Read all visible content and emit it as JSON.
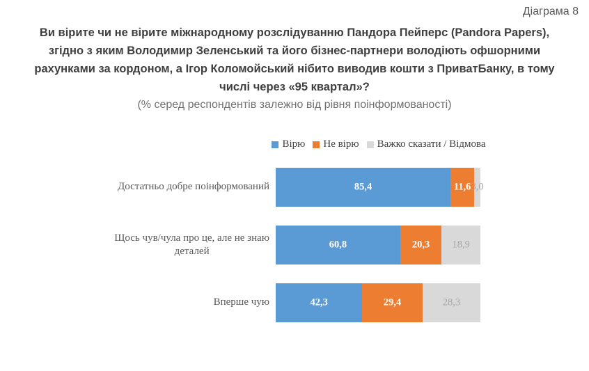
{
  "header": {
    "diagram_label": "Діаграма 8",
    "title": "Ви вірите чи не вірите міжнародному розслідуванню Пандора Пейперс (Pandora Papers),\nзгідно з яким Володимир Зеленський та його бізнес-партнери володіють офшорними\nрахунками за кордоном, а Ігор Коломойський нібито виводив кошти з ПриватБанку, в тому\nчислі через «95 квартал»?",
    "subtitle": "(% серед респондентів залежно від рівня поінформованості)"
  },
  "colors": {
    "believe": "#5B9BD5",
    "not_believe": "#ED7D31",
    "hard_to_say": "#D9D9D9",
    "muted_value_label": "#A6A6A6",
    "title_text": "#3F3F3F",
    "secondary_text": "#595959"
  },
  "chart_data": {
    "type": "bar",
    "orientation": "horizontal",
    "stacked": true,
    "title": "Ви вірите чи не вірите міжнародному розслідуванню Пандора Пейперс (Pandora Papers), згідно з яким Володимир Зеленський та його бізнес-партнери володіють офшорними рахунками за кордоном, а Ігор Коломойський нібито виводив кошти з ПриватБанку, в тому числі через «95 квартал»?",
    "subtitle": "(% серед респондентів залежно від рівня поінформованості)",
    "xlabel": "",
    "ylabel": "",
    "xlim": [
      0,
      100
    ],
    "unit": "%",
    "grid": false,
    "legend_position": "top",
    "value_labels": "inside-center",
    "decimal_separator": ",",
    "categories": [
      "Достатньо добре поінформований",
      "Щось чув/чула про це, але не знаю\nдеталей",
      "Вперше чую"
    ],
    "series": [
      {
        "name": "Вірю",
        "color": "#5B9BD5",
        "label_color": "#FFFFFF",
        "label_bold": true,
        "values": [
          85.4,
          60.8,
          42.3
        ]
      },
      {
        "name": "Не вірю",
        "color": "#ED7D31",
        "label_color": "#FFFFFF",
        "label_bold": true,
        "values": [
          11.6,
          20.3,
          29.4
        ]
      },
      {
        "name": "Важко сказати / Відмова",
        "color": "#D9D9D9",
        "label_color": "#A6A6A6",
        "label_bold": false,
        "values": [
          3.0,
          18.9,
          28.3
        ]
      }
    ]
  }
}
